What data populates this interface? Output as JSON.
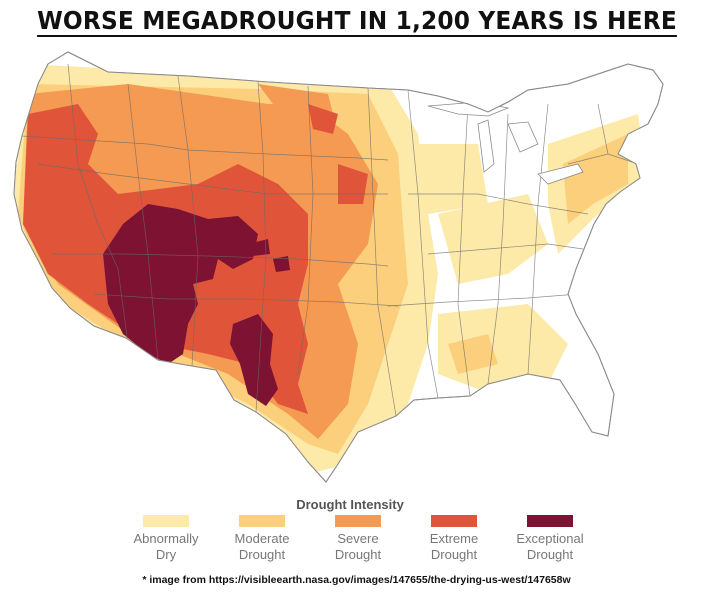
{
  "headline": "WORSE MEGADROUGHT IN 1,200 YEARS IS HERE",
  "legend": {
    "title": "Drought Intensity",
    "items": [
      {
        "label": "Abnormally\nDry",
        "color": "#fde9a8"
      },
      {
        "label": "Moderate\nDrought",
        "color": "#fbcf7c"
      },
      {
        "label": "Severe\nDrought",
        "color": "#f59a53"
      },
      {
        "label": "Extreme\nDrought",
        "color": "#e0553a"
      },
      {
        "label": "Exceptional\nDrought",
        "color": "#7d1233"
      }
    ]
  },
  "credit": "* image from https://visibleearth.nasa.gov/images/147655/the-drying-us-west/147658w"
}
